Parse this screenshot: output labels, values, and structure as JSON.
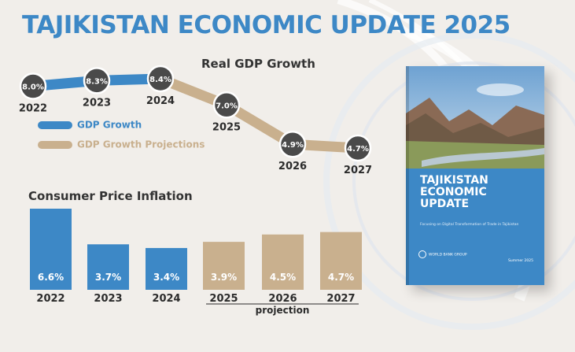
{
  "page": {
    "title": "TAJIKISTAN ECONOMIC UPDATE 2025"
  },
  "colors": {
    "title_blue": "#3d88c6",
    "actual_blue": "#3d88c6",
    "projection_tan": "#c9b08e",
    "text_dark": "#2b2b2b",
    "background": "#f1eeea"
  },
  "legend": {
    "actual": "GDP Growth",
    "projection": "GDP Growth Projections"
  },
  "book": {
    "title_lines": [
      "TAJIKISTAN",
      "ECONOMIC",
      "UPDATE"
    ],
    "subtitle": "Focusing on Digital Transformation of Trade in Tajikistan",
    "publisher": "WORLD BANK GROUP",
    "date": "Summer 2025",
    "photo": "mountain-valley-landscape"
  },
  "chart_data": [
    {
      "type": "line",
      "title": "Real GDP Growth",
      "x": [
        "2022",
        "2023",
        "2024",
        "2025",
        "2026",
        "2027"
      ],
      "values": [
        8.0,
        8.3,
        8.4,
        7.0,
        4.9,
        4.7
      ],
      "labels": [
        "8.0%",
        "8.3%",
        "8.4%",
        "7.0%",
        "4.9%",
        "4.7%"
      ],
      "projected": [
        false,
        false,
        false,
        true,
        true,
        true
      ],
      "legend": [
        "GDP Growth",
        "GDP Growth Projections"
      ],
      "grid": false
    },
    {
      "type": "bar",
      "title": "Consumer Price Inflation",
      "categories": [
        "2022",
        "2023",
        "2024",
        "2025",
        "2026",
        "2027"
      ],
      "values": [
        6.6,
        3.7,
        3.4,
        3.9,
        4.5,
        4.7
      ],
      "labels": [
        "6.6%",
        "3.7%",
        "3.4%",
        "3.9%",
        "4.5%",
        "4.7%"
      ],
      "projected": [
        false,
        false,
        false,
        true,
        true,
        true
      ],
      "projection_label": "projection",
      "ylim": [
        0,
        7
      ],
      "grid": false
    }
  ]
}
